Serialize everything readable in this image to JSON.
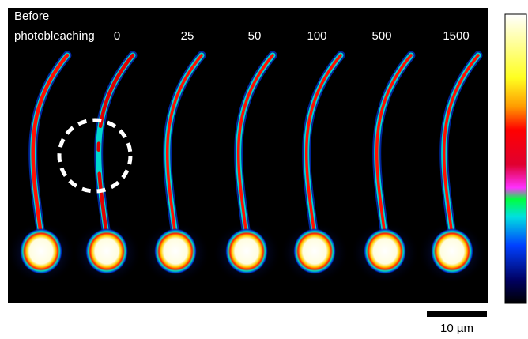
{
  "figure": {
    "before_label": [
      "Before",
      "photobleaching"
    ],
    "time_labels": [
      "0",
      "25",
      "50",
      "100",
      "500",
      "1500"
    ],
    "scale_bar_label": "10 µm"
  }
}
